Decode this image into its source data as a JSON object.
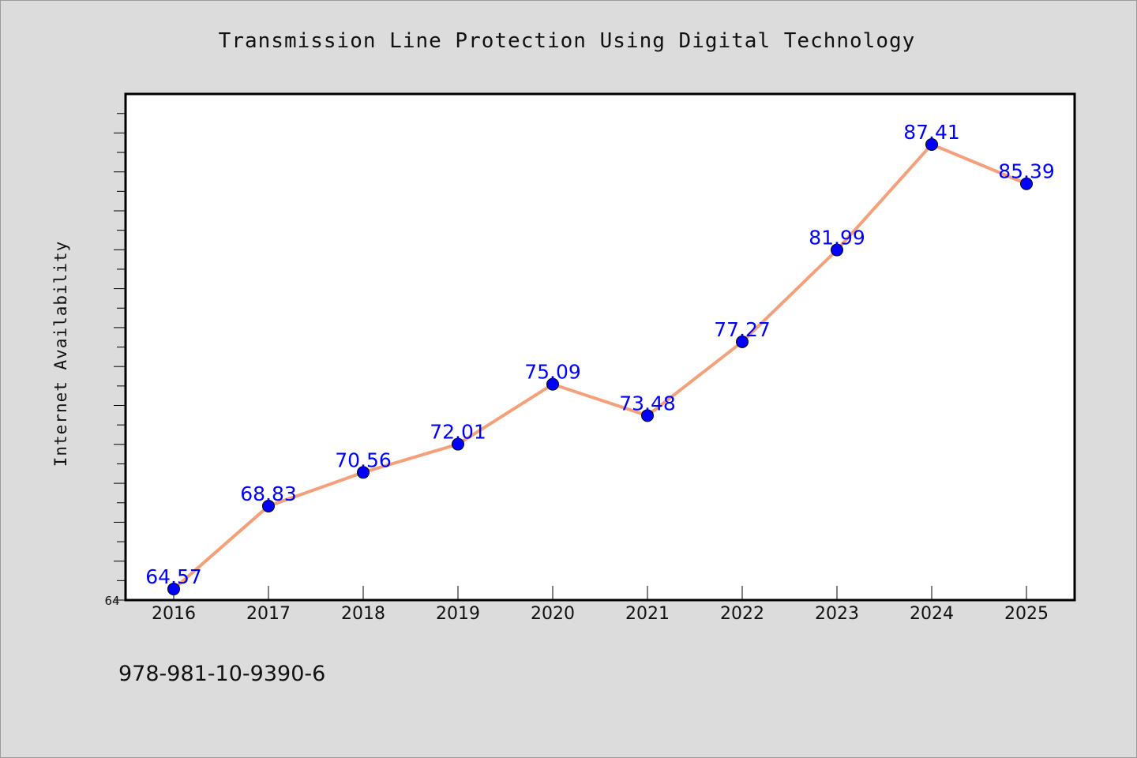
{
  "chart_data": {
    "type": "line",
    "title": "Transmission Line Protection Using Digital Technology",
    "xlabel": "",
    "ylabel": "Internet Availability",
    "categories": [
      "2016",
      "2017",
      "2018",
      "2019",
      "2020",
      "2021",
      "2022",
      "2023",
      "2024",
      "2025"
    ],
    "values": [
      64.57,
      68.83,
      70.56,
      72.01,
      75.09,
      73.48,
      77.27,
      81.99,
      87.41,
      85.39
    ],
    "data_labels": [
      "64.57",
      "68.83",
      "70.56",
      "72.01",
      "75.09",
      "73.48",
      "77.27",
      "81.99",
      "87.41",
      "85.39"
    ],
    "ylim": [
      64,
      90
    ],
    "y_tick_labels": [
      "64"
    ],
    "grid": false,
    "line_color": "#f4a07a",
    "marker_color": "#0000ff",
    "label_color": "#0000ff",
    "plot_background": "#ffffff",
    "page_background": "#dcdcdc"
  },
  "footnote": "978-981-10-9390-6"
}
